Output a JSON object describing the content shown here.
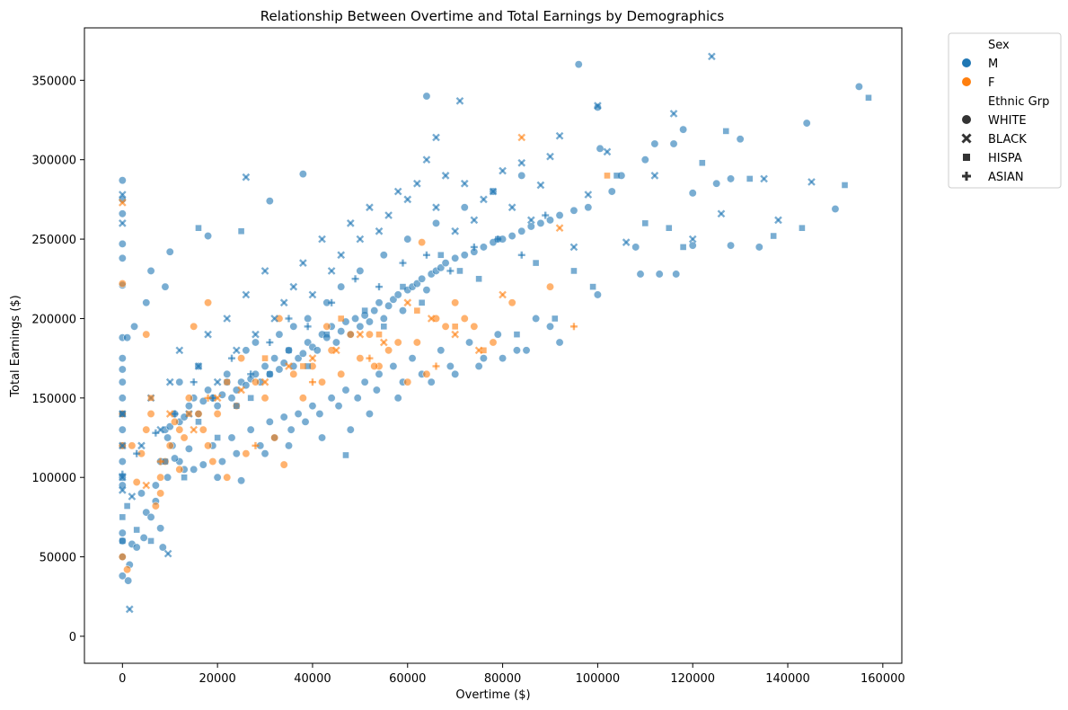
{
  "chart_data": {
    "type": "scatter",
    "title": "Relationship Between Overtime and Total Earnings by Demographics",
    "xlabel": "Overtime ($)",
    "ylabel": "Total Earnings ($)",
    "xlim": [
      -8000,
      164000
    ],
    "ylim": [
      -17000,
      383000
    ],
    "xticks": [
      0,
      20000,
      40000,
      60000,
      80000,
      100000,
      120000,
      140000,
      160000
    ],
    "xtick_labels": [
      "0",
      "20000",
      "40000",
      "60000",
      "80000",
      "100000",
      "120000",
      "140000",
      "160000"
    ],
    "yticks": [
      0,
      50000,
      100000,
      150000,
      200000,
      250000,
      300000,
      350000
    ],
    "ytick_labels": [
      "0",
      "50000",
      "100000",
      "150000",
      "200000",
      "250000",
      "300000",
      "350000"
    ],
    "grid": false,
    "legend_position": "outside-top-right",
    "legend": {
      "hue_title": "Sex",
      "hue_entries": [
        {
          "label": "M",
          "color": "#1f77b4"
        },
        {
          "label": "F",
          "color": "#ff7f0e"
        }
      ],
      "style_title": "Ethnic Grp",
      "style_entries": [
        {
          "label": "WHITE",
          "marker": "circle"
        },
        {
          "label": "BLACK",
          "marker": "x"
        },
        {
          "label": "HISPA",
          "marker": "square"
        },
        {
          "label": "ASIAN",
          "marker": "plus"
        }
      ]
    },
    "point_alpha": 0.6,
    "series": [
      {
        "sex": "M",
        "group": "WHITE",
        "marker": "circle",
        "color": "#1f77b4",
        "x": [
          0,
          0,
          0,
          0,
          0,
          0,
          0,
          0,
          0,
          0,
          0,
          0,
          0,
          0,
          0,
          0,
          0,
          0,
          0,
          0,
          0,
          1200,
          1500,
          2000,
          3000,
          4500,
          5000,
          6000,
          7000,
          8000,
          8500,
          9000,
          9500,
          10000,
          10500,
          11000,
          12000,
          13000,
          14000,
          15000,
          16000,
          17000,
          18000,
          19000,
          20000,
          21000,
          22000,
          23000,
          24000,
          25000,
          26000,
          27000,
          28000,
          29000,
          30000,
          31000,
          32000,
          33000,
          34000,
          35000,
          36000,
          37000,
          38000,
          39000,
          40000,
          41000,
          42000,
          43000,
          44000,
          45000,
          46000,
          47000,
          48000,
          49000,
          50000,
          51000,
          52000,
          53000,
          54000,
          55000,
          56000,
          57000,
          58000,
          59000,
          60000,
          61000,
          62000,
          63000,
          64000,
          65000,
          66000,
          67000,
          68000,
          70000,
          72000,
          74000,
          76000,
          78000,
          80000,
          82000,
          84000,
          86000,
          88000,
          90000,
          92000,
          95000,
          98000,
          100000,
          100500,
          103000,
          105000,
          108000,
          110000,
          112000,
          116000,
          118000,
          120000,
          125000,
          128000,
          130000,
          134000,
          144000,
          150000,
          155000,
          96000,
          64000,
          38000,
          31000,
          18000,
          10000,
          9000,
          6000,
          5000,
          2500,
          1000,
          12000,
          15000,
          20000,
          25000,
          30000,
          35000,
          42000,
          48000,
          52000,
          58000,
          65000,
          70000,
          75000,
          80000,
          85000,
          90000,
          100000,
          109000,
          113000,
          116500,
          120000,
          128000,
          12000,
          16000,
          22000,
          26000,
          28000,
          33000,
          36000,
          39000,
          43000,
          46000,
          50000,
          55000,
          60000,
          66000,
          72000,
          78000,
          84000,
          8000,
          11000,
          14000,
          19000,
          23000,
          27000,
          31000,
          34000,
          37000,
          40000,
          44000,
          47000,
          51000,
          54000,
          57000,
          61000,
          67000,
          73000,
          79000,
          87000,
          4000,
          7000,
          9500,
          13000,
          17000,
          21000,
          24000,
          29000,
          32000,
          35500,
          38500,
          41500,
          45500,
          49500,
          53500,
          59000,
          63000,
          69000,
          76000,
          83000,
          92000
        ],
        "y": [
          287000,
          275000,
          266000,
          247000,
          238000,
          221000,
          188000,
          175000,
          168000,
          160000,
          150000,
          140000,
          130000,
          120000,
          110000,
          100000,
          95000,
          65000,
          60000,
          50000,
          38000,
          35000,
          45000,
          58000,
          56000,
          62000,
          78000,
          75000,
          85000,
          68000,
          56000,
          130000,
          125000,
          132000,
          120000,
          140000,
          135000,
          138000,
          145000,
          150000,
          140000,
          148000,
          155000,
          150000,
          145000,
          152000,
          160000,
          150000,
          155000,
          160000,
          158000,
          162000,
          165000,
          160000,
          170000,
          165000,
          175000,
          168000,
          172000,
          180000,
          170000,
          175000,
          178000,
          185000,
          182000,
          180000,
          190000,
          188000,
          195000,
          185000,
          192000,
          198000,
          190000,
          200000,
          195000,
          202000,
          198000,
          205000,
          210000,
          200000,
          208000,
          212000,
          215000,
          205000,
          218000,
          220000,
          222000,
          225000,
          218000,
          228000,
          230000,
          232000,
          235000,
          238000,
          240000,
          242000,
          245000,
          248000,
          250000,
          252000,
          255000,
          258000,
          260000,
          262000,
          265000,
          268000,
          270000,
          333000,
          307000,
          280000,
          290000,
          245000,
          300000,
          310000,
          310000,
          319000,
          279000,
          285000,
          288000,
          313000,
          245000,
          323000,
          269000,
          346000,
          360000,
          340000,
          291000,
          274000,
          252000,
          242000,
          220000,
          230000,
          210000,
          195000,
          188000,
          110000,
          105000,
          100000,
          98000,
          115000,
          120000,
          125000,
          130000,
          140000,
          150000,
          160000,
          165000,
          170000,
          175000,
          180000,
          195000,
          215000,
          228000,
          228000,
          228000,
          246000,
          246000,
          160000,
          170000,
          165000,
          180000,
          185000,
          190000,
          195000,
          200000,
          210000,
          220000,
          230000,
          240000,
          250000,
          260000,
          270000,
          280000,
          290000,
          110000,
          112000,
          118000,
          120000,
          125000,
          130000,
          135000,
          138000,
          140000,
          145000,
          150000,
          155000,
          160000,
          165000,
          170000,
          175000,
          180000,
          185000,
          190000,
          200000,
          90000,
          95000,
          100000,
          105000,
          108000,
          110000,
          115000,
          120000,
          125000,
          130000,
          135000,
          140000,
          145000,
          150000,
          155000,
          160000,
          165000,
          170000,
          175000,
          180000,
          185000
        ]
      },
      {
        "sex": "F",
        "group": "WHITE",
        "marker": "circle",
        "color": "#ff7f0e",
        "x": [
          0,
          0,
          0,
          0,
          1000,
          2000,
          3000,
          4000,
          5000,
          6000,
          7000,
          8000,
          9000,
          10000,
          11000,
          12000,
          13000,
          14000,
          15000,
          16000,
          17000,
          18000,
          19000,
          20000,
          22000,
          24000,
          26000,
          28000,
          30000,
          32000,
          34000,
          36000,
          38000,
          40000,
          42000,
          44000,
          46000,
          48000,
          50000,
          52000,
          54000,
          56000,
          58000,
          60000,
          62000,
          64000,
          66000,
          68000,
          70000,
          72000,
          74000,
          78000,
          82000,
          90000,
          5000,
          8000,
          12000,
          18000,
          25000,
          33000,
          43000,
          53000,
          63000
        ],
        "y": [
          222000,
          140000,
          120000,
          50000,
          42000,
          120000,
          97000,
          115000,
          130000,
          140000,
          82000,
          90000,
          110000,
          120000,
          135000,
          130000,
          125000,
          150000,
          195000,
          140000,
          130000,
          120000,
          110000,
          140000,
          100000,
          145000,
          115000,
          160000,
          150000,
          125000,
          108000,
          165000,
          150000,
          170000,
          160000,
          180000,
          165000,
          190000,
          175000,
          190000,
          170000,
          180000,
          185000,
          160000,
          185000,
          165000,
          200000,
          195000,
          210000,
          200000,
          195000,
          185000,
          210000,
          220000,
          190000,
          100000,
          105000,
          210000,
          175000,
          200000,
          195000,
          170000,
          248000
        ]
      },
      {
        "sex": "M",
        "group": "BLACK",
        "marker": "x",
        "color": "#1f77b4",
        "x": [
          0,
          0,
          0,
          0,
          0,
          0,
          2000,
          4000,
          6000,
          8000,
          10000,
          12000,
          14000,
          16000,
          18000,
          20000,
          22000,
          24000,
          26000,
          28000,
          30000,
          32000,
          34000,
          36000,
          38000,
          40000,
          42000,
          44000,
          46000,
          48000,
          50000,
          52000,
          54000,
          56000,
          58000,
          60000,
          62000,
          64000,
          66000,
          68000,
          70000,
          72000,
          74000,
          76000,
          78000,
          80000,
          82000,
          84000,
          86000,
          88000,
          90000,
          92000,
          95000,
          98000,
          100000,
          102000,
          106000,
          112000,
          116000,
          120000,
          126000,
          135000,
          138000,
          145000,
          124000,
          71000,
          66000,
          26000,
          9600,
          1500
        ],
        "y": [
          278000,
          260000,
          140000,
          120000,
          100000,
          92000,
          88000,
          120000,
          150000,
          130000,
          160000,
          180000,
          140000,
          170000,
          190000,
          160000,
          200000,
          180000,
          215000,
          190000,
          230000,
          200000,
          210000,
          220000,
          235000,
          215000,
          250000,
          230000,
          240000,
          260000,
          250000,
          270000,
          255000,
          265000,
          280000,
          275000,
          285000,
          300000,
          270000,
          290000,
          255000,
          285000,
          262000,
          275000,
          280000,
          293000,
          270000,
          298000,
          262000,
          284000,
          302000,
          315000,
          245000,
          278000,
          334000,
          305000,
          248000,
          290000,
          329000,
          250000,
          266000,
          288000,
          262000,
          286000,
          365000,
          337000,
          314000,
          289000,
          52000,
          17000
        ]
      },
      {
        "sex": "M",
        "group": "HISPA",
        "marker": "square",
        "color": "#1f77b4",
        "x": [
          0,
          0,
          0,
          1000,
          3000,
          6000,
          9000,
          13000,
          16000,
          20000,
          24000,
          27000,
          31000,
          35000,
          39000,
          43000,
          47000,
          51000,
          55000,
          59000,
          63000,
          67000,
          71000,
          75000,
          79000,
          83000,
          87000,
          91000,
          95000,
          99000,
          104000,
          110000,
          115000,
          118000,
          122000,
          127000,
          132000,
          137000,
          143000,
          152000,
          157000,
          16000,
          25000
        ],
        "y": [
          75000,
          60000,
          140000,
          82000,
          67000,
          60000,
          110000,
          100000,
          135000,
          125000,
          145000,
          150000,
          165000,
          180000,
          170000,
          190000,
          114000,
          205000,
          195000,
          220000,
          210000,
          240000,
          230000,
          225000,
          250000,
          190000,
          235000,
          200000,
          230000,
          220000,
          290000,
          260000,
          257000,
          245000,
          298000,
          318000,
          288000,
          252000,
          257000,
          284000,
          339000,
          257000,
          255000
        ]
      },
      {
        "sex": "M",
        "group": "ASIAN",
        "marker": "plus",
        "color": "#1f77b4",
        "x": [
          0,
          3000,
          7000,
          11000,
          15000,
          19000,
          23000,
          27000,
          31000,
          35000,
          39000,
          44000,
          49000,
          54000,
          59000,
          64000,
          69000,
          74000,
          79000,
          84000,
          89000
        ],
        "y": [
          102000,
          115000,
          128000,
          140000,
          160000,
          150000,
          175000,
          165000,
          185000,
          200000,
          195000,
          210000,
          225000,
          220000,
          235000,
          240000,
          230000,
          245000,
          250000,
          240000,
          265000
        ]
      },
      {
        "sex": "F",
        "group": "BLACK",
        "marker": "x",
        "color": "#ff7f0e",
        "x": [
          0,
          5000,
          10000,
          15000,
          20000,
          25000,
          30000,
          35000,
          40000,
          45000,
          50000,
          55000,
          60000,
          65000,
          70000,
          75000,
          80000,
          84000,
          92000
        ],
        "y": [
          273000,
          95000,
          140000,
          130000,
          150000,
          155000,
          160000,
          170000,
          175000,
          180000,
          190000,
          185000,
          210000,
          200000,
          190000,
          180000,
          215000,
          314000,
          257000
        ]
      },
      {
        "sex": "F",
        "group": "HISPA",
        "marker": "square",
        "color": "#ff7f0e",
        "x": [
          6000,
          14000,
          22000,
          30000,
          38000,
          46000,
          54000,
          62000,
          70000,
          76000,
          102000
        ],
        "y": [
          150000,
          140000,
          160000,
          175000,
          170000,
          200000,
          190000,
          205000,
          195000,
          180000,
          290000
        ]
      },
      {
        "sex": "F",
        "group": "ASIAN",
        "marker": "plus",
        "color": "#ff7f0e",
        "x": [
          8000,
          18000,
          28000,
          40000,
          52000,
          66000,
          95000
        ],
        "y": [
          110000,
          150000,
          120000,
          160000,
          175000,
          170000,
          195000
        ]
      }
    ]
  }
}
